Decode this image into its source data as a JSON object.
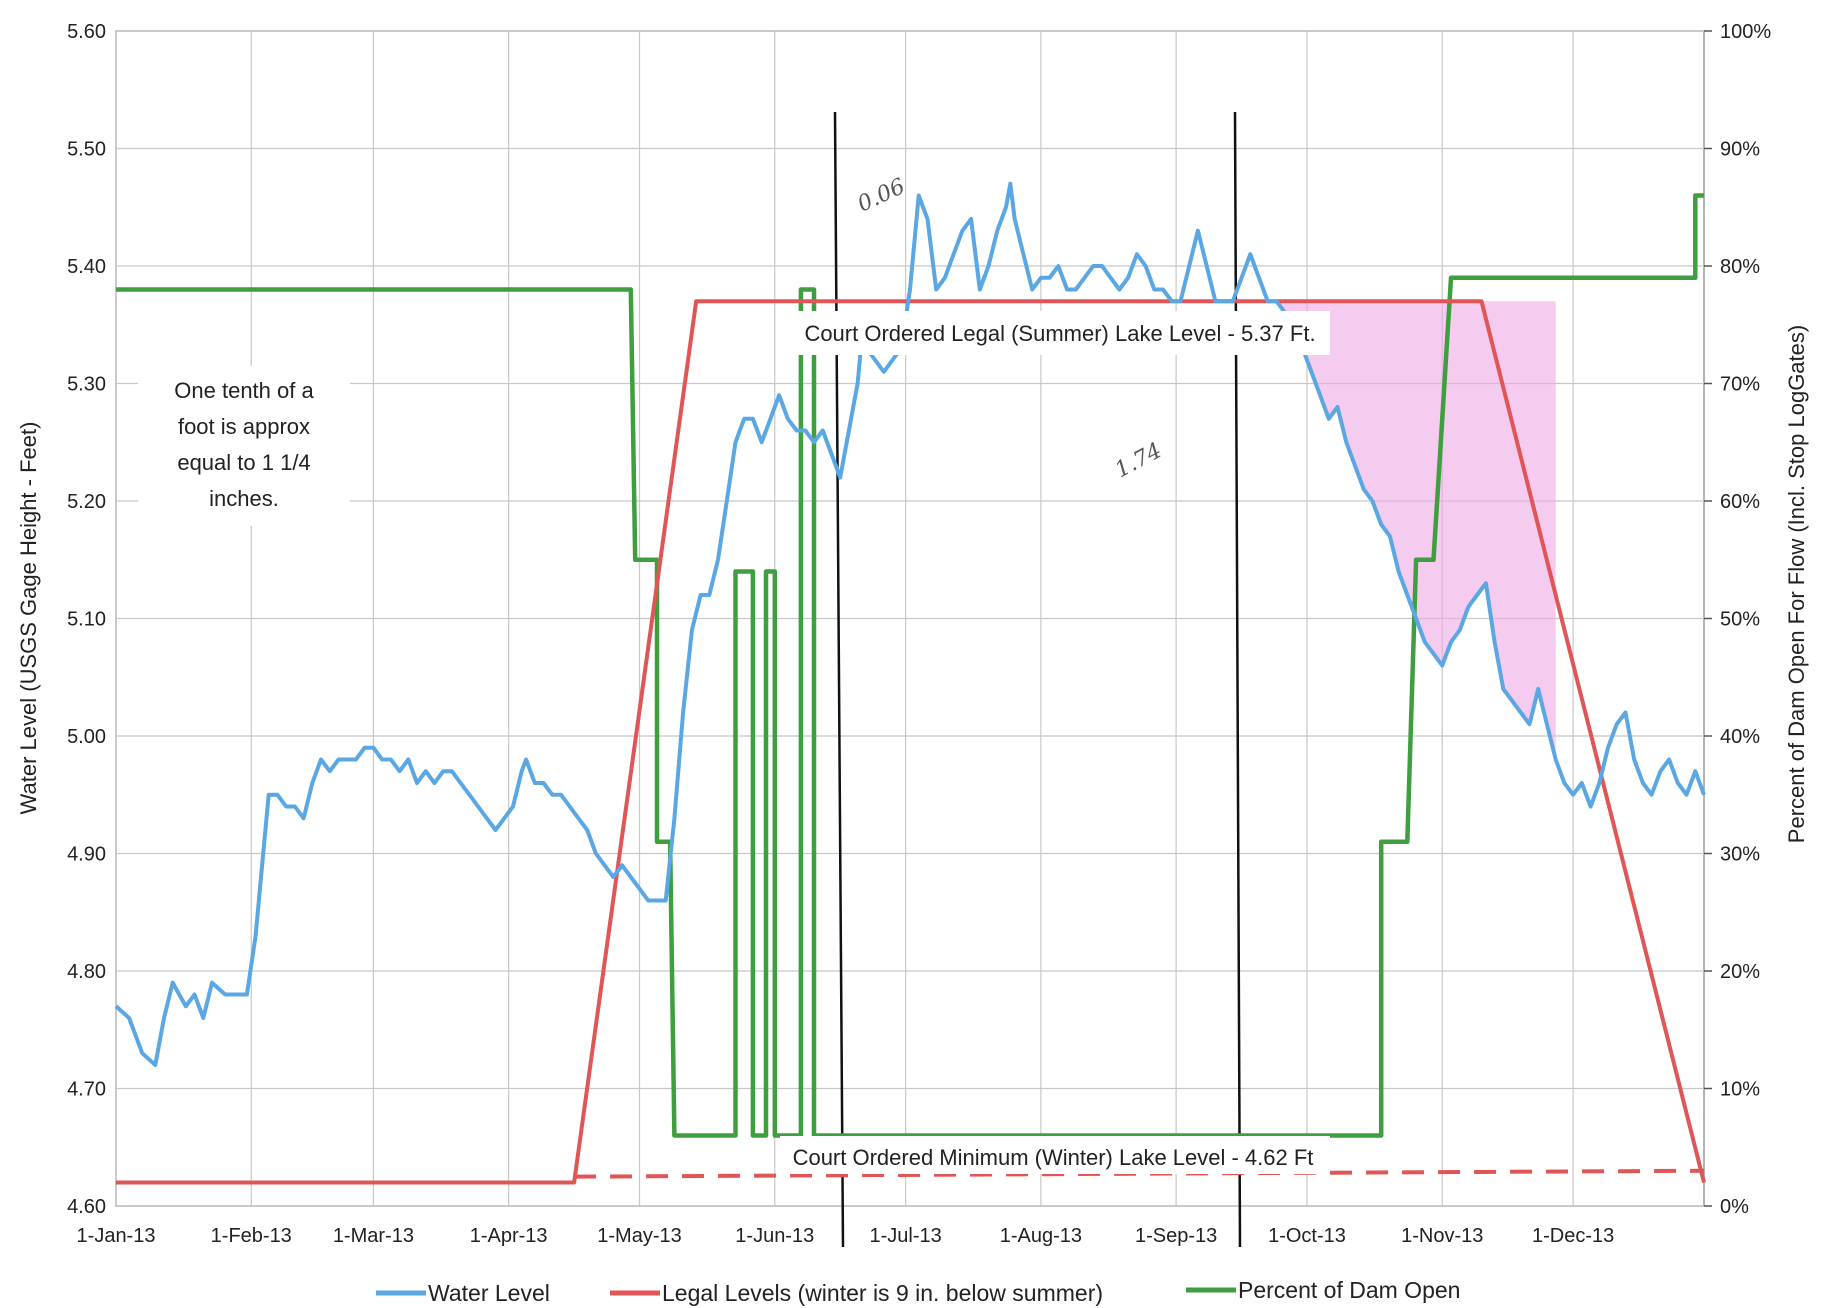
{
  "chart_data": {
    "type": "line",
    "x_tick_labels": [
      "1-Jan-13",
      "1-Feb-13",
      "1-Mar-13",
      "1-Apr-13",
      "1-May-13",
      "1-Jun-13",
      "1-Jul-13",
      "1-Aug-13",
      "1-Sep-13",
      "1-Oct-13",
      "1-Nov-13",
      "1-Dec-13"
    ],
    "x_ticks_day": [
      0,
      31,
      59,
      90,
      120,
      151,
      181,
      212,
      243,
      273,
      304,
      334
    ],
    "xlim_day": [
      0,
      364
    ],
    "ylabel": "Water Level (USGS Gage Height - Feet)",
    "y2label": "Percent of Dam Open For Flow (Incl. Stop LogGates)",
    "ylim": [
      4.6,
      5.6
    ],
    "y_tick_labels": [
      "4.60",
      "4.70",
      "4.80",
      "4.90",
      "5.00",
      "5.10",
      "5.20",
      "5.30",
      "5.40",
      "5.50",
      "5.60"
    ],
    "y2lim": [
      0,
      100
    ],
    "y2_tick_labels": [
      "0%",
      "10%",
      "20%",
      "30%",
      "40%",
      "50%",
      "60%",
      "70%",
      "80%",
      "90%",
      "100%"
    ],
    "grid": true,
    "legend_position": "bottom",
    "series": [
      {
        "name": "Water Level",
        "axis": "left",
        "color": "#5aa7e3",
        "points": [
          [
            0,
            4.77
          ],
          [
            3,
            4.76
          ],
          [
            6,
            4.73
          ],
          [
            9,
            4.72
          ],
          [
            11,
            4.76
          ],
          [
            13,
            4.79
          ],
          [
            16,
            4.77
          ],
          [
            18,
            4.78
          ],
          [
            20,
            4.76
          ],
          [
            22,
            4.79
          ],
          [
            25,
            4.78
          ],
          [
            28,
            4.78
          ],
          [
            30,
            4.78
          ],
          [
            32,
            4.83
          ],
          [
            34,
            4.91
          ],
          [
            35,
            4.95
          ],
          [
            37,
            4.95
          ],
          [
            39,
            4.94
          ],
          [
            41,
            4.94
          ],
          [
            43,
            4.93
          ],
          [
            45,
            4.96
          ],
          [
            47,
            4.98
          ],
          [
            49,
            4.97
          ],
          [
            51,
            4.98
          ],
          [
            53,
            4.98
          ],
          [
            55,
            4.98
          ],
          [
            57,
            4.99
          ],
          [
            59,
            4.99
          ],
          [
            61,
            4.98
          ],
          [
            63,
            4.98
          ],
          [
            65,
            4.97
          ],
          [
            67,
            4.98
          ],
          [
            69,
            4.96
          ],
          [
            71,
            4.97
          ],
          [
            73,
            4.96
          ],
          [
            75,
            4.97
          ],
          [
            77,
            4.97
          ],
          [
            79,
            4.96
          ],
          [
            81,
            4.95
          ],
          [
            83,
            4.94
          ],
          [
            85,
            4.93
          ],
          [
            87,
            4.92
          ],
          [
            89,
            4.93
          ],
          [
            91,
            4.94
          ],
          [
            93,
            4.97
          ],
          [
            94,
            4.98
          ],
          [
            96,
            4.96
          ],
          [
            98,
            4.96
          ],
          [
            100,
            4.95
          ],
          [
            102,
            4.95
          ],
          [
            104,
            4.94
          ],
          [
            106,
            4.93
          ],
          [
            108,
            4.92
          ],
          [
            110,
            4.9
          ],
          [
            112,
            4.89
          ],
          [
            114,
            4.88
          ],
          [
            116,
            4.89
          ],
          [
            118,
            4.88
          ],
          [
            120,
            4.87
          ],
          [
            122,
            4.86
          ],
          [
            126,
            4.86
          ],
          [
            128,
            4.93
          ],
          [
            130,
            5.02
          ],
          [
            132,
            5.09
          ],
          [
            134,
            5.12
          ],
          [
            136,
            5.12
          ],
          [
            138,
            5.15
          ],
          [
            140,
            5.2
          ],
          [
            142,
            5.25
          ],
          [
            144,
            5.27
          ],
          [
            146,
            5.27
          ],
          [
            148,
            5.25
          ],
          [
            150,
            5.27
          ],
          [
            152,
            5.29
          ],
          [
            154,
            5.27
          ],
          [
            156,
            5.26
          ],
          [
            158,
            5.26
          ],
          [
            160,
            5.25
          ],
          [
            162,
            5.26
          ],
          [
            164,
            5.24
          ],
          [
            166,
            5.22
          ],
          [
            168,
            5.26
          ],
          [
            170,
            5.3
          ],
          [
            171,
            5.34
          ],
          [
            172,
            5.33
          ],
          [
            174,
            5.32
          ],
          [
            176,
            5.31
          ],
          [
            178,
            5.32
          ],
          [
            180,
            5.33
          ],
          [
            182,
            5.38
          ],
          [
            184,
            5.46
          ],
          [
            186,
            5.44
          ],
          [
            188,
            5.38
          ],
          [
            190,
            5.39
          ],
          [
            192,
            5.41
          ],
          [
            194,
            5.43
          ],
          [
            196,
            5.44
          ],
          [
            198,
            5.38
          ],
          [
            200,
            5.4
          ],
          [
            202,
            5.43
          ],
          [
            204,
            5.45
          ],
          [
            205,
            5.47
          ],
          [
            206,
            5.44
          ],
          [
            208,
            5.41
          ],
          [
            210,
            5.38
          ],
          [
            212,
            5.39
          ],
          [
            214,
            5.39
          ],
          [
            216,
            5.4
          ],
          [
            218,
            5.38
          ],
          [
            220,
            5.38
          ],
          [
            222,
            5.39
          ],
          [
            224,
            5.4
          ],
          [
            226,
            5.4
          ],
          [
            228,
            5.39
          ],
          [
            230,
            5.38
          ],
          [
            232,
            5.39
          ],
          [
            234,
            5.41
          ],
          [
            236,
            5.4
          ],
          [
            238,
            5.38
          ],
          [
            240,
            5.38
          ],
          [
            242,
            5.37
          ],
          [
            244,
            5.37
          ],
          [
            246,
            5.4
          ],
          [
            248,
            5.43
          ],
          [
            250,
            5.4
          ],
          [
            252,
            5.37
          ],
          [
            254,
            5.37
          ],
          [
            256,
            5.37
          ],
          [
            258,
            5.39
          ],
          [
            260,
            5.41
          ],
          [
            262,
            5.39
          ],
          [
            264,
            5.37
          ],
          [
            266,
            5.37
          ],
          [
            268,
            5.36
          ],
          [
            270,
            5.35
          ],
          [
            272,
            5.33
          ],
          [
            274,
            5.31
          ],
          [
            276,
            5.29
          ],
          [
            278,
            5.27
          ],
          [
            280,
            5.28
          ],
          [
            282,
            5.25
          ],
          [
            284,
            5.23
          ],
          [
            286,
            5.21
          ],
          [
            288,
            5.2
          ],
          [
            290,
            5.18
          ],
          [
            292,
            5.17
          ],
          [
            294,
            5.14
          ],
          [
            296,
            5.12
          ],
          [
            298,
            5.1
          ],
          [
            300,
            5.08
          ],
          [
            302,
            5.07
          ],
          [
            304,
            5.06
          ],
          [
            306,
            5.08
          ],
          [
            308,
            5.09
          ],
          [
            310,
            5.11
          ],
          [
            312,
            5.12
          ],
          [
            314,
            5.13
          ],
          [
            316,
            5.08
          ],
          [
            318,
            5.04
          ],
          [
            320,
            5.03
          ],
          [
            322,
            5.02
          ],
          [
            324,
            5.01
          ],
          [
            326,
            5.04
          ],
          [
            328,
            5.01
          ],
          [
            330,
            4.98
          ],
          [
            332,
            4.96
          ],
          [
            334,
            4.95
          ],
          [
            336,
            4.96
          ],
          [
            338,
            4.94
          ],
          [
            340,
            4.96
          ],
          [
            342,
            4.99
          ],
          [
            344,
            5.01
          ],
          [
            346,
            5.02
          ],
          [
            348,
            4.98
          ],
          [
            350,
            4.96
          ],
          [
            352,
            4.95
          ],
          [
            354,
            4.97
          ],
          [
            356,
            4.98
          ],
          [
            358,
            4.96
          ],
          [
            360,
            4.95
          ],
          [
            362,
            4.97
          ],
          [
            364,
            4.95
          ]
        ]
      },
      {
        "name": "Legal Levels (winter is 9 in. below summer)",
        "axis": "left",
        "color": "#e05555",
        "points": [
          [
            0,
            4.62
          ],
          [
            105,
            4.62
          ],
          [
            133,
            5.37
          ],
          [
            313,
            5.37
          ],
          [
            364,
            4.62
          ]
        ]
      },
      {
        "name": "Percent of Dam Open",
        "axis": "right",
        "color": "#3f9e3f",
        "points": [
          [
            0,
            78
          ],
          [
            117,
            78
          ],
          [
            117,
            78
          ],
          [
            118,
            78
          ],
          [
            118,
            78
          ],
          [
            119,
            55
          ],
          [
            124,
            55
          ],
          [
            124,
            31
          ],
          [
            127,
            31
          ],
          [
            128,
            6
          ],
          [
            142,
            6
          ],
          [
            142,
            54
          ],
          [
            146,
            54
          ],
          [
            146,
            6
          ],
          [
            149,
            6
          ],
          [
            149,
            54
          ],
          [
            151,
            54
          ],
          [
            151,
            6
          ],
          [
            157,
            6
          ],
          [
            157,
            6
          ],
          [
            157,
            78
          ],
          [
            158,
            78
          ],
          [
            158,
            78
          ],
          [
            160,
            78
          ],
          [
            160,
            6
          ],
          [
            290,
            6
          ],
          [
            290,
            31
          ],
          [
            292,
            31
          ],
          [
            293,
            31
          ],
          [
            296,
            31
          ],
          [
            298,
            55
          ],
          [
            302,
            55
          ],
          [
            306,
            79
          ],
          [
            362,
            79
          ],
          [
            362,
            86
          ],
          [
            364,
            86
          ]
        ]
      }
    ],
    "annotations": {
      "summer_level": "Court Ordered Legal (Summer) Lake Level - 5.37 Ft.",
      "winter_level": "Court Ordered Minimum (Winter) Lake Level - 4.62 Ft",
      "note_line1": "One tenth of a",
      "note_line2": "foot is approx",
      "note_line3": "equal to 1 1/4",
      "note_line4": "inches.",
      "hand_small": "0.06",
      "hand_large": "1.74"
    }
  }
}
